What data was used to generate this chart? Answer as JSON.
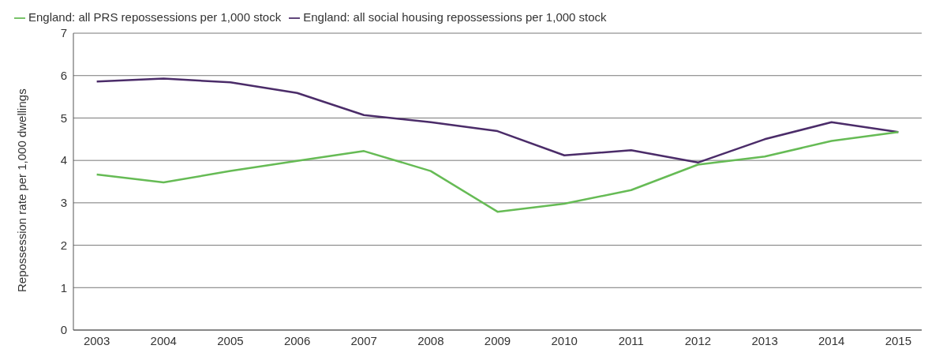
{
  "chart_data": {
    "type": "line",
    "ylabel": "Repossession rate per 1,000 dwellings",
    "categories": [
      "2003",
      "2004",
      "2005",
      "2006",
      "2007",
      "2008",
      "2009",
      "2010",
      "2011",
      "2012",
      "2013",
      "2014",
      "2015"
    ],
    "series": [
      {
        "name": "England: all social housing repossessions per 1,000 stock",
        "color": "#4b2c69",
        "values": [
          5.86,
          5.93,
          5.84,
          5.59,
          5.07,
          4.9,
          4.69,
          4.12,
          4.24,
          3.95,
          4.5,
          4.9,
          4.67
        ]
      },
      {
        "name": "England: all PRS repossessions per 1,000 stock",
        "color": "#66bb55",
        "values": [
          3.67,
          3.48,
          3.75,
          3.99,
          4.22,
          3.75,
          2.79,
          2.98,
          3.3,
          3.9,
          4.09,
          4.46,
          4.67
        ]
      }
    ],
    "ylim": [
      0,
      7
    ],
    "yticks": [
      0,
      1,
      2,
      3,
      4,
      5,
      6,
      7
    ],
    "grid": "y",
    "legend": "top left",
    "marker": "none",
    "line_style": "solid"
  }
}
